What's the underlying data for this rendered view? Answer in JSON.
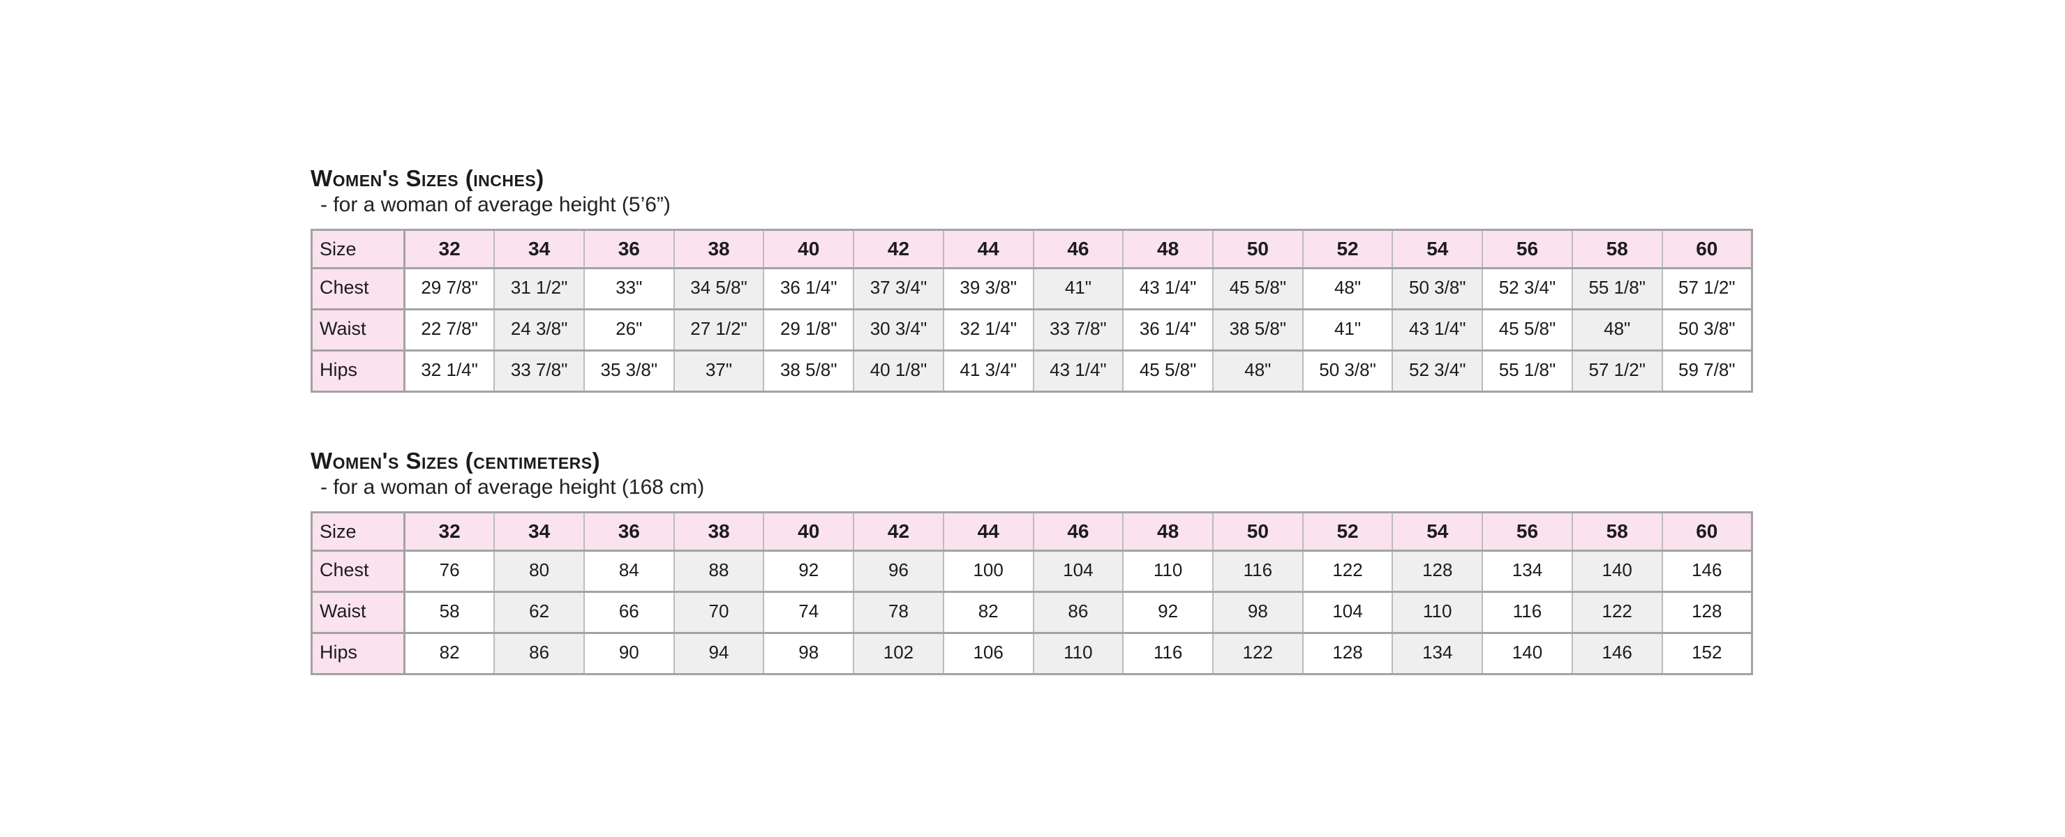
{
  "page": {
    "background": "#ffffff"
  },
  "colors": {
    "header_pink": "#fbe2ef",
    "stripe_gray": "#efefef",
    "border_heavy": "#a3a3a3",
    "border_light": "#bcbcbc",
    "text": "#1c1c1c"
  },
  "tables": [
    {
      "title": "Women's Sizes (inches)",
      "subtitle": "- for a woman of average height (5’6”)",
      "corner_label": "Size",
      "sizes": [
        "32",
        "34",
        "36",
        "38",
        "40",
        "42",
        "44",
        "46",
        "48",
        "50",
        "52",
        "54",
        "56",
        "58",
        "60"
      ],
      "rows": [
        {
          "label": "Chest",
          "values": [
            "29 7/8\"",
            "31 1/2\"",
            "33\"",
            "34 5/8\"",
            "36 1/4\"",
            "37 3/4\"",
            "39 3/8\"",
            "41\"",
            "43 1/4\"",
            "45 5/8\"",
            "48\"",
            "50 3/8\"",
            "52 3/4\"",
            "55 1/8\"",
            "57 1/2\""
          ]
        },
        {
          "label": "Waist",
          "values": [
            "22 7/8\"",
            "24 3/8\"",
            "26\"",
            "27 1/2\"",
            "29 1/8\"",
            "30 3/4\"",
            "32 1/4\"",
            "33 7/8\"",
            "36 1/4\"",
            "38 5/8\"",
            "41\"",
            "43 1/4\"",
            "45 5/8\"",
            "48\"",
            "50 3/8\""
          ]
        },
        {
          "label": "Hips",
          "values": [
            "32 1/4\"",
            "33 7/8\"",
            "35 3/8\"",
            "37\"",
            "38 5/8\"",
            "40 1/8\"",
            "41 3/4\"",
            "43 1/4\"",
            "45 5/8\"",
            "48\"",
            "50 3/8\"",
            "52 3/4\"",
            "55 1/8\"",
            "57 1/2\"",
            "59 7/8\""
          ]
        }
      ]
    },
    {
      "title": "Women's Sizes (centimeters)",
      "subtitle": "- for a woman of average height (168 cm)",
      "corner_label": "Size",
      "sizes": [
        "32",
        "34",
        "36",
        "38",
        "40",
        "42",
        "44",
        "46",
        "48",
        "50",
        "52",
        "54",
        "56",
        "58",
        "60"
      ],
      "rows": [
        {
          "label": "Chest",
          "values": [
            "76",
            "80",
            "84",
            "88",
            "92",
            "96",
            "100",
            "104",
            "110",
            "116",
            "122",
            "128",
            "134",
            "140",
            "146"
          ]
        },
        {
          "label": "Waist",
          "values": [
            "58",
            "62",
            "66",
            "70",
            "74",
            "78",
            "82",
            "86",
            "92",
            "98",
            "104",
            "110",
            "116",
            "122",
            "128"
          ]
        },
        {
          "label": "Hips",
          "values": [
            "82",
            "86",
            "90",
            "94",
            "98",
            "102",
            "106",
            "110",
            "116",
            "122",
            "128",
            "134",
            "140",
            "146",
            "152"
          ]
        }
      ]
    }
  ]
}
